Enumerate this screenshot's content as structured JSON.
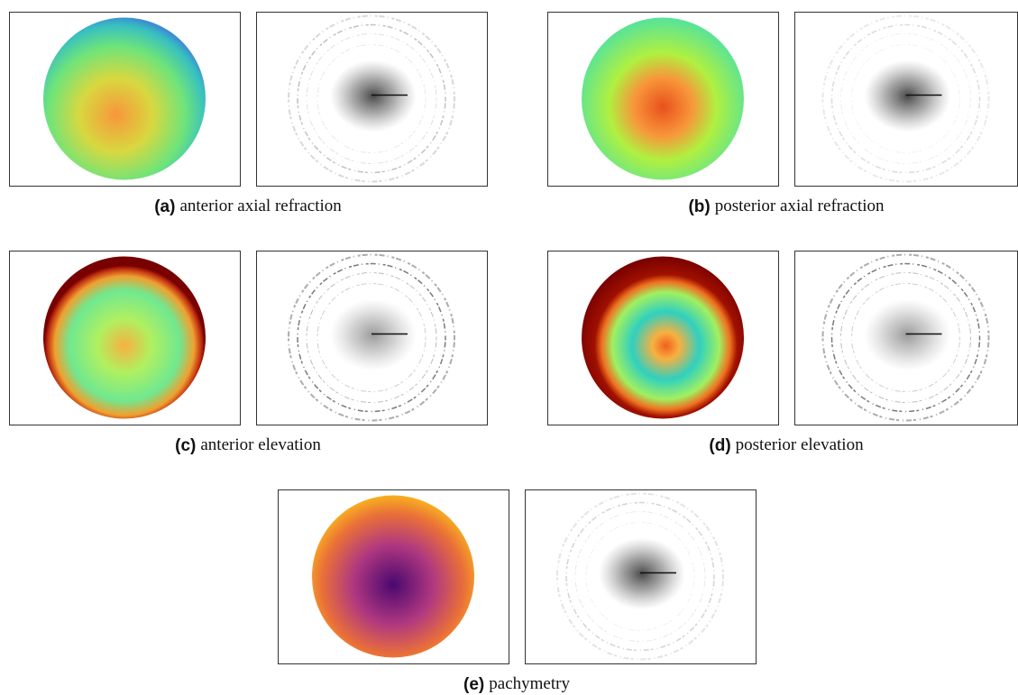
{
  "figure": {
    "panels": [
      {
        "label": "(a)",
        "caption": "anterior axial refraction"
      },
      {
        "label": "(b)",
        "caption": "posterior axial refraction"
      },
      {
        "label": "(c)",
        "caption": "anterior elevation"
      },
      {
        "label": "(d)",
        "caption": "posterior elevation"
      },
      {
        "label": "(e)",
        "caption": "pachymetry"
      }
    ]
  }
}
